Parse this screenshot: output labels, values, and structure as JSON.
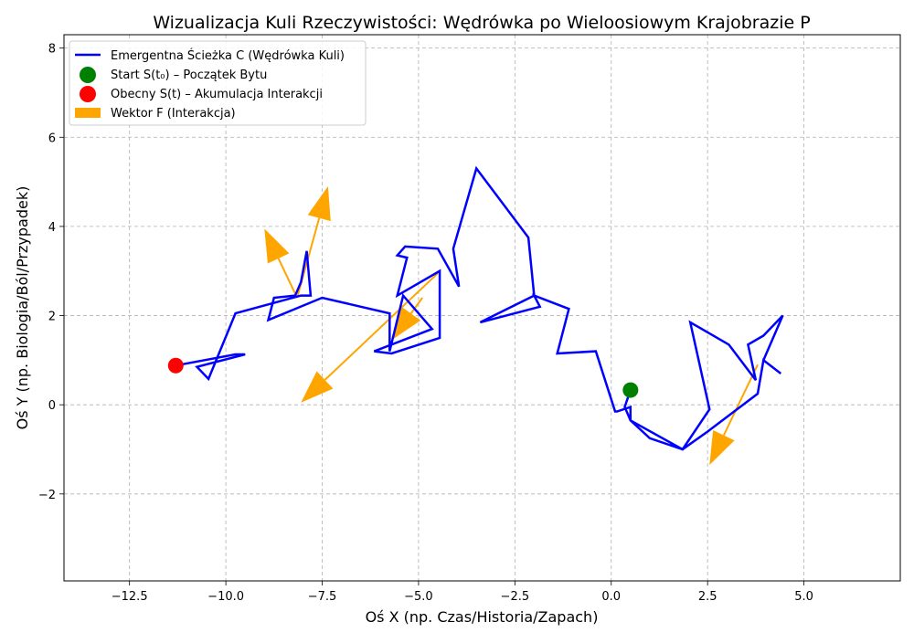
{
  "chart_data": {
    "type": "line",
    "title": "Wizualizacja Kuli Rzeczywistości: Wędrówka po Wieloosiowym Krajobrazie P",
    "xlabel": "Oś X (np. Czas/Historia/Zapach)",
    "ylabel": "Oś Y (np. Biologia/Ból/Przypadek)",
    "xlim": [
      -14.2,
      7.5
    ],
    "ylim": [
      -3.95,
      8.3
    ],
    "xticks": [
      -12.5,
      -10.0,
      -7.5,
      -5.0,
      -2.5,
      0.0,
      2.5,
      5.0
    ],
    "xtick_labels": [
      "−12.5",
      "−10.0",
      "−7.5",
      "−5.0",
      "−2.5",
      "0.0",
      "2.5",
      "5.0"
    ],
    "yticks": [
      -2,
      0,
      2,
      4,
      6,
      8
    ],
    "ytick_labels": [
      "−2",
      "0",
      "2",
      "4",
      "6",
      "8"
    ],
    "grid": true,
    "legend_position": "top-left",
    "colors": {
      "path": "#0000ff",
      "start": "#008000",
      "current": "#ff0000",
      "vector": "#ffa500"
    },
    "series": [
      {
        "name": "Emergentna Ścieżka C (Wędrówka Kuli)",
        "kind": "line",
        "x": [
          0.5,
          0.35,
          0.5,
          1.0,
          1.85,
          2.55,
          2.05,
          3.05,
          3.75,
          3.55,
          3.95,
          4.45,
          3.95,
          4.4,
          3.95,
          3.8,
          2.5,
          1.85,
          0.5,
          0.5,
          0.15,
          0.1,
          -0.4,
          -1.4,
          -1.1,
          -2.0,
          -1.85,
          -3.4,
          -2.0,
          -2.15,
          -3.5,
          -4.1,
          -3.95,
          -4.5,
          -5.35,
          -5.55,
          -5.3,
          -5.55,
          -4.45,
          -4.45,
          -5.7,
          -6.15,
          -4.65,
          -5.4,
          -5.75,
          -5.75,
          -7.5,
          -8.9,
          -8.75,
          -8.2,
          -8.05,
          -7.9,
          -7.8,
          -8.05,
          -9.75,
          -10.45,
          -10.75,
          -9.5,
          -9.75,
          -11.3
        ],
        "y": [
          0.33,
          -0.05,
          -0.35,
          -0.75,
          -1.0,
          -0.1,
          1.85,
          1.35,
          0.55,
          1.35,
          1.55,
          2.0,
          1.0,
          0.7,
          1.0,
          0.25,
          -0.6,
          -1.0,
          -0.35,
          -0.05,
          -0.15,
          -0.15,
          1.2,
          1.15,
          2.15,
          2.45,
          2.2,
          1.85,
          2.45,
          3.75,
          5.3,
          3.5,
          2.65,
          3.5,
          3.55,
          3.35,
          3.3,
          2.45,
          3.0,
          1.5,
          1.15,
          1.2,
          1.7,
          2.45,
          1.2,
          2.05,
          2.4,
          1.9,
          2.4,
          2.45,
          2.75,
          3.45,
          2.45,
          2.45,
          2.05,
          0.58,
          0.85,
          1.13,
          1.13,
          0.88
        ]
      },
      {
        "name": "Start S(t₀) – Początek Bytu",
        "kind": "point",
        "x": [
          0.5
        ],
        "y": [
          0.33
        ]
      },
      {
        "name": "Obecny S(t) – Akumulacja Interakcji",
        "kind": "point",
        "x": [
          -11.3
        ],
        "y": [
          0.88
        ]
      }
    ],
    "vectors": {
      "name": "Wektor F (Interakcja)",
      "items": [
        {
          "x": -4.5,
          "y": 2.95,
          "dx": -3.55,
          "dy": -2.9
        },
        {
          "x": -4.9,
          "y": 2.4,
          "dx": -0.8,
          "dy": -0.95
        },
        {
          "x": -8.15,
          "y": 2.4,
          "dx": 0.8,
          "dy": 2.5
        },
        {
          "x": -8.15,
          "y": 2.4,
          "dx": -0.85,
          "dy": 1.55
        },
        {
          "x": 3.8,
          "y": 0.9,
          "dx": -1.25,
          "dy": -2.25
        }
      ]
    }
  }
}
